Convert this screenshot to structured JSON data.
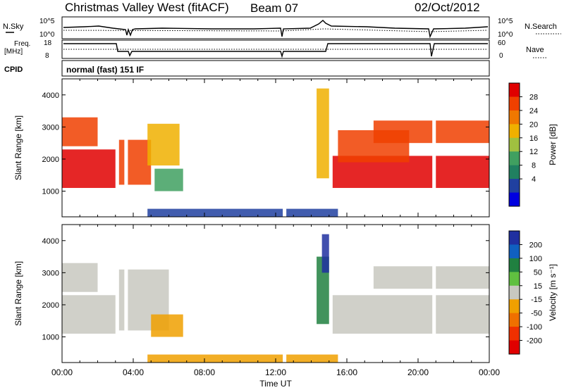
{
  "header": {
    "title": "Christmas Valley West (fitACF)",
    "beam": "Beam 07",
    "date": "02/Oct/2012"
  },
  "strip_labels": {
    "nsky": "N.Sky",
    "nsky_top": "10^5",
    "nsky_bot": "10^0",
    "nsearch": "N.Search",
    "nsearch_top": "10^5",
    "nsearch_bot": "10^0",
    "freq_line1": "Freq.",
    "freq_line2": "[MHz]",
    "freq_top": "18",
    "freq_bot": "8",
    "nave": "Nave",
    "nave_top": "60",
    "nave_bot": "0",
    "cpid": "CPID",
    "mode": "normal (fast) 151 IF"
  },
  "power_colorbar": {
    "label": "Power [dB]",
    "ticks": [
      "28",
      "24",
      "20",
      "16",
      "12",
      "8",
      "4"
    ],
    "colors": [
      "#e00000",
      "#f04000",
      "#f07800",
      "#f0b000",
      "#a0c040",
      "#40a060",
      "#208060",
      "#2040a0",
      "#0000e0"
    ]
  },
  "velocity_colorbar": {
    "label": "Velocity [m s⁻¹]",
    "ticks": [
      "200",
      "100",
      "50",
      "15",
      "-15",
      "-50",
      "-100",
      "-200"
    ],
    "colors": [
      "#2030a0",
      "#1060c0",
      "#208040",
      "#60c040",
      "#c8c8c0",
      "#f0a000",
      "#f07000",
      "#f03000",
      "#e00000"
    ]
  },
  "chart_data": [
    {
      "type": "heatmap",
      "name": "power",
      "ylabel": "Slant Range [km]",
      "yticks": [
        "1000",
        "2000",
        "3000",
        "4000"
      ],
      "ylim": [
        200,
        4500
      ],
      "xlim": [
        0,
        24
      ],
      "regions": [
        {
          "t0": 0.0,
          "t1": 3.0,
          "r0": 1100,
          "r1": 2300,
          "v": 29
        },
        {
          "t0": 0.0,
          "t1": 2.0,
          "r0": 2400,
          "r1": 3300,
          "v": 27
        },
        {
          "t0": 3.2,
          "t1": 5.0,
          "r0": 1200,
          "r1": 2600,
          "v": 28
        },
        {
          "t0": 4.8,
          "t1": 6.6,
          "r0": 1800,
          "r1": 3100,
          "v": 18
        },
        {
          "t0": 5.2,
          "t1": 6.8,
          "r0": 1000,
          "r1": 1700,
          "v": 14
        },
        {
          "t0": 14.3,
          "t1": 15.0,
          "r0": 1400,
          "r1": 4200,
          "v": 20
        },
        {
          "t0": 15.2,
          "t1": 24.0,
          "r0": 1100,
          "r1": 2100,
          "v": 29
        },
        {
          "t0": 15.5,
          "t1": 19.5,
          "r0": 1900,
          "r1": 2900,
          "v": 25
        },
        {
          "t0": 17.5,
          "t1": 24.0,
          "r0": 2500,
          "r1": 3200,
          "v": 26
        },
        {
          "t0": 4.8,
          "t1": 15.5,
          "r0": 200,
          "r1": 450,
          "v": 6
        }
      ]
    },
    {
      "type": "heatmap",
      "name": "velocity",
      "ylabel": "Slant Range [km]",
      "xlabel": "Time UT",
      "yticks": [
        "1000",
        "2000",
        "3000",
        "4000"
      ],
      "xticks": [
        "00:00",
        "04:00",
        "08:00",
        "12:00",
        "16:00",
        "20:00",
        "00:00"
      ],
      "ylim": [
        200,
        4500
      ],
      "xlim": [
        0,
        24
      ],
      "regions": [
        {
          "t0": 0.0,
          "t1": 3.0,
          "r0": 1100,
          "r1": 2300,
          "v": 0
        },
        {
          "t0": 0.0,
          "t1": 2.0,
          "r0": 2400,
          "r1": 3300,
          "v": 0
        },
        {
          "t0": 3.2,
          "t1": 6.0,
          "r0": 1200,
          "r1": 3100,
          "v": 0
        },
        {
          "t0": 5.0,
          "t1": 6.8,
          "r0": 1000,
          "r1": 1700,
          "v": -50
        },
        {
          "t0": 14.3,
          "t1": 15.0,
          "r0": 1400,
          "r1": 3500,
          "v": 50
        },
        {
          "t0": 14.6,
          "t1": 15.0,
          "r0": 3000,
          "r1": 4200,
          "v": 200
        },
        {
          "t0": 15.2,
          "t1": 24.0,
          "r0": 1100,
          "r1": 2300,
          "v": 0
        },
        {
          "t0": 17.5,
          "t1": 24.0,
          "r0": 2500,
          "r1": 3200,
          "v": 0
        },
        {
          "t0": 4.8,
          "t1": 15.5,
          "r0": 200,
          "r1": 450,
          "v": -50
        }
      ]
    }
  ]
}
